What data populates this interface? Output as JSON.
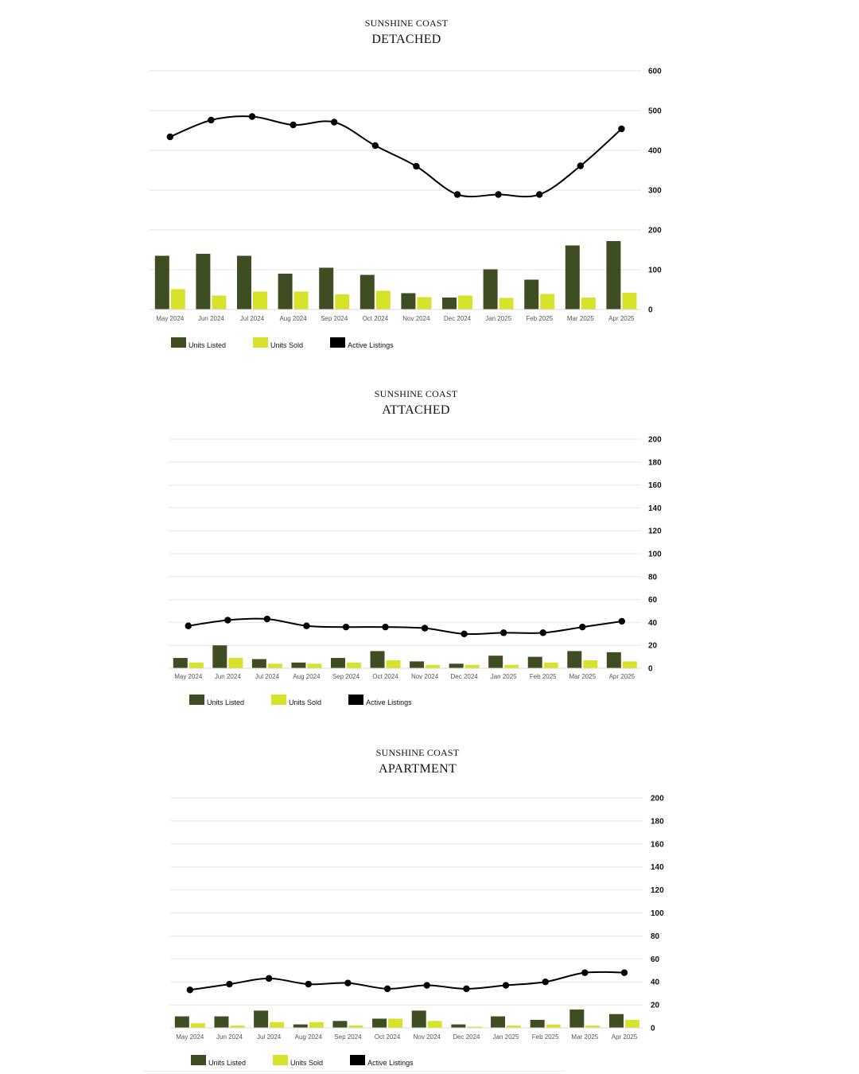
{
  "colors": {
    "units_listed": "#3f4d23",
    "units_sold": "#d7e22a",
    "active_listings": "#000000",
    "grid": "#e6e6e6",
    "text": "#111111",
    "tick_text": "#555555"
  },
  "chart_data": [
    {
      "type": "bar",
      "region": "SUNSHINE COAST",
      "title": "DETACHED",
      "categories": [
        "May 2024",
        "Jun 2024",
        "Jul 2024",
        "Aug 2024",
        "Sep 2024",
        "Oct 2024",
        "Nov 2024",
        "Dec 2024",
        "Jan 2025",
        "Feb 2025",
        "Mar 2025",
        "Apr 2025"
      ],
      "series": [
        {
          "name": "Units Listed",
          "type": "bar",
          "values": [
            135,
            140,
            135,
            90,
            105,
            87,
            41,
            30,
            101,
            75,
            161,
            172
          ]
        },
        {
          "name": "Units Sold",
          "type": "bar",
          "values": [
            51,
            35,
            45,
            45,
            38,
            47,
            31,
            35,
            29,
            39,
            30,
            42
          ]
        },
        {
          "name": "Active Listings",
          "type": "line",
          "values": [
            434,
            476,
            485,
            464,
            471,
            412,
            360,
            289,
            289,
            289,
            361,
            454
          ]
        }
      ],
      "ylim": [
        0,
        600
      ],
      "yticks": [
        0,
        100,
        200,
        300,
        400,
        500,
        600
      ],
      "xlabel": "",
      "ylabel": "",
      "grid": true,
      "legend": "bottom-left"
    },
    {
      "type": "bar",
      "region": "SUNSHINE COAST",
      "title": "ATTACHED",
      "categories": [
        "May 2024",
        "Jun 2024",
        "Jul 2024",
        "Aug 2024",
        "Sep 2024",
        "Oct 2024",
        "Nov 2024",
        "Dec 2024",
        "Jan 2025",
        "Feb 2025",
        "Mar 2025",
        "Apr 2025"
      ],
      "series": [
        {
          "name": "Units Listed",
          "type": "bar",
          "values": [
            9,
            20,
            8,
            5,
            9,
            15,
            6,
            4,
            11,
            10,
            15,
            14
          ]
        },
        {
          "name": "Units Sold",
          "type": "bar",
          "values": [
            5,
            9,
            4,
            4,
            5,
            7,
            3,
            3,
            3,
            5,
            7,
            6
          ]
        },
        {
          "name": "Active Listings",
          "type": "line",
          "values": [
            37,
            42,
            43,
            37,
            36,
            36,
            35,
            30,
            31,
            31,
            36,
            41
          ]
        }
      ],
      "ylim": [
        0,
        200
      ],
      "yticks": [
        0,
        20,
        40,
        60,
        80,
        100,
        120,
        140,
        160,
        180,
        200
      ],
      "xlabel": "",
      "ylabel": "",
      "grid": true,
      "legend": "bottom-left"
    },
    {
      "type": "bar",
      "region": "SUNSHINE COAST",
      "title": "APARTMENT",
      "categories": [
        "May 2024",
        "Jun 2024",
        "Jul 2024",
        "Aug 2024",
        "Sep 2024",
        "Oct 2024",
        "Nov 2024",
        "Dec 2024",
        "Jan 2025",
        "Feb 2025",
        "Mar 2025",
        "Apr 2025"
      ],
      "series": [
        {
          "name": "Units Listed",
          "type": "bar",
          "values": [
            10,
            10,
            15,
            3,
            6,
            8,
            15,
            3,
            10,
            7,
            16,
            12
          ]
        },
        {
          "name": "Units Sold",
          "type": "bar",
          "values": [
            4,
            2,
            5,
            5,
            2,
            8,
            6,
            1,
            2,
            3,
            2,
            7
          ]
        },
        {
          "name": "Active Listings",
          "type": "line",
          "values": [
            33,
            38,
            43,
            38,
            39,
            34,
            37,
            34,
            37,
            40,
            48,
            48
          ]
        }
      ],
      "ylim": [
        0,
        200
      ],
      "yticks": [
        0,
        20,
        40,
        60,
        80,
        100,
        120,
        140,
        160,
        180,
        200
      ],
      "xlabel": "",
      "ylabel": "",
      "grid": true,
      "legend": "bottom-left"
    }
  ]
}
